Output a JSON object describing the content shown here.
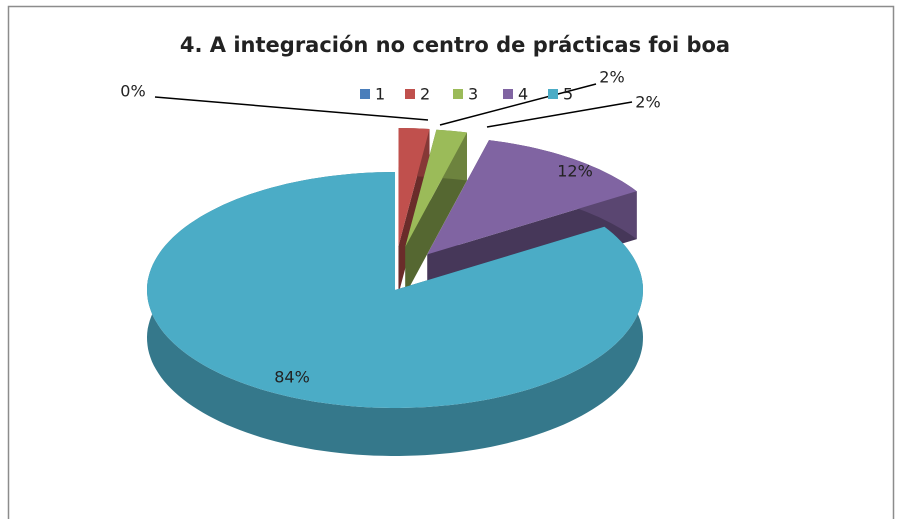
{
  "chart_data": {
    "type": "pie",
    "title": "4. A integración no centro de prácticas foi boa",
    "categories": [
      "1",
      "2",
      "3",
      "4",
      "5"
    ],
    "values": [
      0,
      2,
      2,
      12,
      84
    ],
    "value_labels": [
      "0%",
      "2%",
      "2%",
      "12%",
      "84%"
    ],
    "colors": [
      "#4a7ebb",
      "#c0504d",
      "#9bbb59",
      "#8064a2",
      "#4bacc6"
    ],
    "legend": "top"
  }
}
